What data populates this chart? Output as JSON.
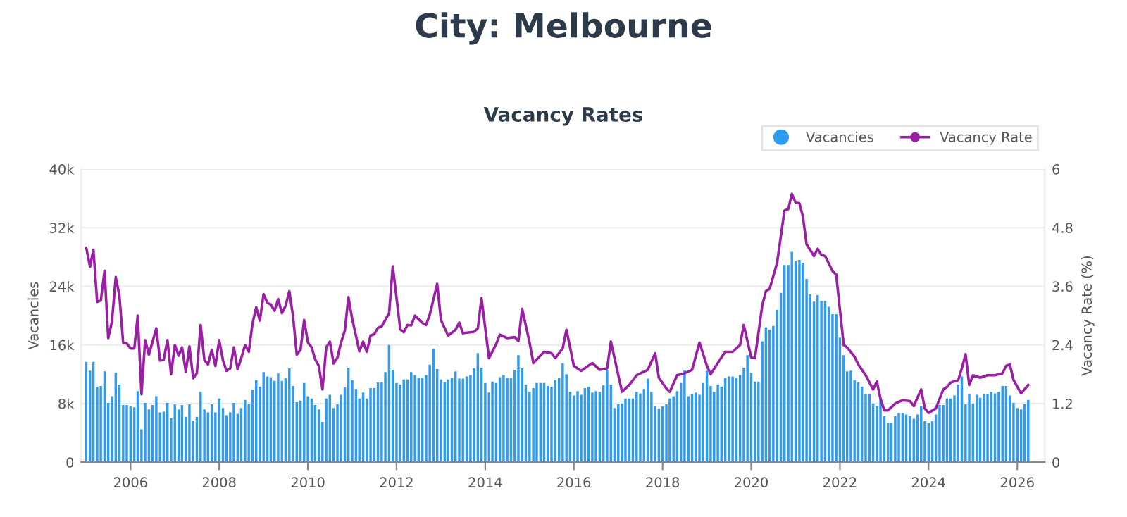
{
  "chart_data": {
    "type": "bar",
    "title": "City: Melbourne",
    "subtitle": "Vacancy Rates",
    "ylabel": "Vacancies",
    "y2label": "Vacancy Rate (%)",
    "x": [
      "2005-01",
      "2005-02",
      "2005-03",
      "2005-04",
      "2005-05",
      "2005-06",
      "2005-07",
      "2005-08",
      "2005-09",
      "2005-10",
      "2005-11",
      "2005-12",
      "2006-01",
      "2006-02",
      "2006-03",
      "2006-04",
      "2006-05",
      "2006-06",
      "2006-07",
      "2006-08",
      "2006-09",
      "2006-10",
      "2006-11",
      "2006-12",
      "2007-01",
      "2007-02",
      "2007-03",
      "2007-04",
      "2007-05",
      "2007-06",
      "2007-07",
      "2007-08",
      "2007-09",
      "2007-10",
      "2007-11",
      "2007-12",
      "2008-01",
      "2008-02",
      "2008-03",
      "2008-04",
      "2008-05",
      "2008-06",
      "2008-07",
      "2008-08",
      "2008-09",
      "2008-10",
      "2008-11",
      "2008-12",
      "2009-01",
      "2009-02",
      "2009-03",
      "2009-04",
      "2009-05",
      "2009-06",
      "2009-07",
      "2009-08",
      "2009-09",
      "2009-10",
      "2009-11",
      "2009-12",
      "2010-01",
      "2010-02",
      "2010-03",
      "2010-04",
      "2010-05",
      "2010-06",
      "2010-07",
      "2010-08",
      "2010-09",
      "2010-10",
      "2010-11",
      "2010-12",
      "2011-01",
      "2011-02",
      "2011-03",
      "2011-04",
      "2011-05",
      "2011-06",
      "2011-07",
      "2011-08",
      "2011-09",
      "2011-10",
      "2011-11",
      "2011-12",
      "2012-01",
      "2012-02",
      "2012-03",
      "2012-04",
      "2012-05",
      "2012-06",
      "2012-07",
      "2012-08",
      "2012-09",
      "2012-10",
      "2012-11",
      "2012-12",
      "2013-01",
      "2013-02",
      "2013-03",
      "2013-04",
      "2013-05",
      "2013-06",
      "2013-07",
      "2013-08",
      "2013-09",
      "2013-10",
      "2013-11",
      "2013-12",
      "2014-01",
      "2014-02",
      "2014-03",
      "2014-04",
      "2014-05",
      "2014-06",
      "2014-07",
      "2014-08",
      "2014-09",
      "2014-10",
      "2014-11",
      "2014-12",
      "2015-01",
      "2015-02",
      "2015-03",
      "2015-04",
      "2015-05",
      "2015-06",
      "2015-07",
      "2015-08",
      "2015-09",
      "2015-10",
      "2015-11",
      "2015-12",
      "2016-01",
      "2016-02",
      "2016-03",
      "2016-04",
      "2016-05",
      "2016-06",
      "2016-07",
      "2016-08",
      "2016-09",
      "2016-10",
      "2016-11",
      "2016-12",
      "2017-01",
      "2017-02",
      "2017-03",
      "2017-04",
      "2017-05",
      "2017-06",
      "2017-07",
      "2017-08",
      "2017-09",
      "2017-10",
      "2017-11",
      "2017-12",
      "2018-01",
      "2018-02",
      "2018-03",
      "2018-04",
      "2018-05",
      "2018-06",
      "2018-07",
      "2018-08",
      "2018-09",
      "2018-10",
      "2018-11",
      "2018-12",
      "2019-01",
      "2019-02",
      "2019-03",
      "2019-04",
      "2019-05",
      "2019-06",
      "2019-07",
      "2019-08",
      "2019-09",
      "2019-10",
      "2019-11",
      "2019-12",
      "2020-01",
      "2020-02",
      "2020-03",
      "2020-04",
      "2020-05",
      "2020-06",
      "2020-07",
      "2020-08",
      "2020-09",
      "2020-10",
      "2020-11",
      "2020-12",
      "2021-01",
      "2021-02",
      "2021-03",
      "2021-04",
      "2021-05",
      "2021-06",
      "2021-07",
      "2021-08",
      "2021-09",
      "2021-10",
      "2021-11",
      "2021-12",
      "2022-01",
      "2022-02",
      "2022-03",
      "2022-04",
      "2022-05",
      "2022-06",
      "2022-07",
      "2022-08",
      "2022-09",
      "2022-10",
      "2022-11",
      "2022-12",
      "2023-01",
      "2023-02",
      "2023-03",
      "2023-04",
      "2023-05",
      "2023-06",
      "2023-07",
      "2023-08",
      "2023-09",
      "2023-10",
      "2023-11",
      "2023-12",
      "2024-01",
      "2024-02",
      "2024-03",
      "2024-04",
      "2024-05",
      "2024-06",
      "2024-07",
      "2024-08",
      "2024-09",
      "2024-10",
      "2024-11",
      "2024-12",
      "2025-01",
      "2025-02",
      "2025-03",
      "2025-04",
      "2025-05",
      "2025-06",
      "2025-07",
      "2025-08",
      "2025-09",
      "2025-10",
      "2025-11",
      "2025-12",
      "2026-01",
      "2026-02",
      "2026-03",
      "2026-04"
    ],
    "series": [
      {
        "name": "Vacancies",
        "color": "#2f9bf0",
        "values": [
          13700,
          12500,
          13700,
          10300,
          10400,
          12400,
          8100,
          9000,
          12200,
          10600,
          7800,
          7800,
          7600,
          7500,
          9700,
          4500,
          8100,
          7200,
          7800,
          9000,
          6800,
          6900,
          8100,
          6000,
          7900,
          7200,
          7800,
          6200,
          7900,
          5700,
          6200,
          9600,
          7200,
          6800,
          7900,
          6800,
          8700,
          7400,
          6400,
          6800,
          8100,
          6600,
          7400,
          8500,
          7900,
          9900,
          11200,
          10300,
          12300,
          11700,
          11600,
          11100,
          12100,
          11100,
          11500,
          12800,
          10400,
          8200,
          8400,
          10800,
          9000,
          8700,
          7800,
          7200,
          5500,
          8700,
          9200,
          7400,
          7900,
          9200,
          10200,
          12900,
          11200,
          10000,
          8700,
          9500,
          8700,
          10100,
          10100,
          10900,
          10900,
          12300,
          16000,
          12600,
          10800,
          10600,
          11300,
          11300,
          12300,
          11900,
          11500,
          11500,
          11900,
          13300,
          15500,
          12700,
          11300,
          10900,
          11300,
          11500,
          12400,
          11400,
          11400,
          11700,
          11900,
          12800,
          14900,
          12900,
          10800,
          9500,
          11000,
          10800,
          11600,
          11900,
          11500,
          11500,
          12600,
          14600,
          12800,
          10600,
          9600,
          10100,
          10800,
          10800,
          10800,
          10400,
          10300,
          11200,
          11500,
          13500,
          12000,
          9600,
          9100,
          9700,
          9200,
          10100,
          10300,
          9500,
          9700,
          9600,
          10500,
          12600,
          10600,
          7400,
          7900,
          8000,
          8700,
          8700,
          8700,
          9600,
          9400,
          10000,
          11400,
          9600,
          7700,
          7300,
          7600,
          7900,
          8700,
          9000,
          9700,
          10800,
          12600,
          9000,
          9300,
          9500,
          9200,
          10800,
          12500,
          10400,
          9600,
          10600,
          10300,
          11500,
          11700,
          11700,
          11500,
          11900,
          12900,
          14600,
          12200,
          11000,
          11000,
          16500,
          18400,
          18100,
          18600,
          20800,
          23100,
          26900,
          26900,
          28700,
          27400,
          27600,
          27200,
          25000,
          22900,
          21900,
          22800,
          22000,
          22000,
          21200,
          20200,
          20200,
          17000,
          14600,
          12400,
          12500,
          11200,
          10900,
          10300,
          9300,
          9300,
          8000,
          7600,
          8800,
          6300,
          5400,
          5400,
          6300,
          6700,
          6700,
          6500,
          6300,
          5900,
          6500,
          7700,
          5600,
          5300,
          5600,
          6500,
          7800,
          7800,
          8700,
          8700,
          9100,
          10600,
          11700,
          7900,
          9300,
          8000,
          9200,
          8800,
          9300,
          9300,
          9600,
          9400,
          9600,
          10400,
          10400,
          9100,
          8100,
          7400,
          7200,
          7900,
          8500
        ]
      },
      {
        "name": "Vacancy Rate",
        "type": "line",
        "axis": "y2",
        "color": "#9b1fa5",
        "marker": "none",
        "x": [
          "2005-01",
          "2005-02",
          "2005-03",
          "2005-04",
          "2005-05",
          "2005-06",
          "2005-07",
          "2005-08",
          "2005-09",
          "2005-10",
          "2005-11",
          "2005-12",
          "2006-01",
          "2006-02",
          "2006-03",
          "2006-04",
          "2006-05",
          "2006-06",
          "2006-08",
          "2006-09",
          "2006-10",
          "2006-11",
          "2006-12",
          "2007-01",
          "2007-02",
          "2007-03",
          "2007-04",
          "2007-05",
          "2007-06",
          "2007-07",
          "2007-08",
          "2007-09",
          "2007-10",
          "2007-11",
          "2007-12",
          "2008-01",
          "2008-02",
          "2008-03",
          "2008-04",
          "2008-05",
          "2008-06",
          "2008-07",
          "2008-08",
          "2008-09",
          "2008-10",
          "2008-11",
          "2008-12",
          "2009-01",
          "2009-02",
          "2009-03",
          "2009-04",
          "2009-05",
          "2009-06",
          "2009-07",
          "2009-08",
          "2009-09",
          "2009-10",
          "2009-11",
          "2009-12",
          "2010-01",
          "2010-02",
          "2010-03",
          "2010-04",
          "2010-05",
          "2010-06",
          "2010-07",
          "2010-08",
          "2010-09",
          "2010-10",
          "2010-11",
          "2010-12",
          "2011-01",
          "2011-02",
          "2011-03",
          "2011-04",
          "2011-05",
          "2011-06",
          "2011-07",
          "2011-08",
          "2011-09",
          "2011-11",
          "2011-12",
          "2012-02",
          "2012-03",
          "2012-04",
          "2012-05",
          "2012-06",
          "2012-08",
          "2012-09",
          "2012-10",
          "2012-12",
          "2013-01",
          "2013-03",
          "2013-05",
          "2013-06",
          "2013-07",
          "2013-10",
          "2013-11",
          "2013-12",
          "2014-02",
          "2014-04",
          "2014-05",
          "2014-07",
          "2014-09",
          "2014-10",
          "2014-11",
          "2015-01",
          "2015-02",
          "2015-05",
          "2015-07",
          "2015-08",
          "2015-10",
          "2015-11",
          "2016-01",
          "2016-03",
          "2016-06",
          "2016-08",
          "2016-10",
          "2016-11",
          "2017-01",
          "2017-02",
          "2017-04",
          "2017-06",
          "2017-09",
          "2017-11",
          "2017-12",
          "2018-02",
          "2018-03",
          "2018-05",
          "2018-07",
          "2018-09",
          "2018-11",
          "2019-01",
          "2019-02",
          "2019-04",
          "2019-06",
          "2019-08",
          "2019-10",
          "2019-11",
          "2020-01",
          "2020-02",
          "2020-04",
          "2020-05",
          "2020-06",
          "2020-08",
          "2020-10",
          "2020-11",
          "2020-12",
          "2021-01",
          "2021-02",
          "2021-03",
          "2021-04",
          "2021-06",
          "2021-07",
          "2021-08",
          "2021-09",
          "2021-11",
          "2021-12",
          "2022-02",
          "2022-03",
          "2022-05",
          "2022-06",
          "2022-08",
          "2022-10",
          "2022-11",
          "2022-12",
          "2023-01",
          "2023-02",
          "2023-04",
          "2023-06",
          "2023-08",
          "2023-09",
          "2023-11",
          "2023-12",
          "2024-01",
          "2024-03",
          "2024-05",
          "2024-06",
          "2024-07",
          "2024-09",
          "2024-10",
          "2024-11",
          "2024-12",
          "2025-01",
          "2025-03",
          "2025-05",
          "2025-07",
          "2025-09",
          "2025-10",
          "2025-11",
          "2025-12",
          "2026-02",
          "2026-04"
        ],
        "values": [
          4.39,
          4.0,
          4.35,
          3.28,
          3.31,
          3.92,
          2.54,
          2.88,
          3.79,
          3.41,
          2.45,
          2.43,
          2.33,
          2.33,
          3.0,
          1.39,
          2.5,
          2.2,
          2.74,
          2.08,
          2.1,
          2.5,
          1.8,
          2.4,
          2.18,
          2.35,
          1.85,
          2.37,
          1.72,
          1.82,
          2.81,
          2.09,
          2.0,
          2.3,
          1.97,
          2.5,
          2.09,
          1.87,
          1.92,
          2.35,
          1.9,
          2.13,
          2.4,
          2.26,
          2.83,
          3.17,
          2.9,
          3.44,
          3.26,
          3.23,
          3.1,
          3.34,
          3.05,
          3.2,
          3.5,
          2.98,
          2.2,
          2.3,
          2.91,
          2.45,
          2.35,
          2.11,
          1.97,
          1.49,
          2.35,
          2.47,
          2.02,
          2.14,
          2.45,
          2.69,
          3.38,
          2.93,
          2.59,
          2.27,
          2.47,
          2.26,
          2.59,
          2.62,
          2.75,
          2.78,
          3.05,
          4.01,
          2.72,
          2.66,
          2.81,
          2.8,
          3.0,
          2.85,
          2.81,
          3.02,
          3.65,
          2.91,
          2.59,
          2.71,
          2.86,
          2.64,
          2.67,
          2.74,
          3.36,
          2.13,
          2.42,
          2.61,
          2.54,
          2.56,
          2.48,
          3.14,
          2.45,
          2.03,
          2.26,
          2.23,
          2.13,
          2.33,
          2.71,
          1.97,
          1.87,
          2.03,
          1.89,
          1.92,
          2.47,
          1.78,
          1.44,
          1.58,
          1.78,
          1.89,
          2.23,
          1.73,
          1.51,
          1.44,
          1.78,
          1.82,
          1.89,
          2.45,
          1.97,
          1.8,
          2.03,
          2.26,
          2.26,
          2.4,
          2.81,
          2.14,
          2.13,
          3.21,
          3.5,
          3.55,
          4.08,
          5.15,
          5.18,
          5.49,
          5.31,
          5.3,
          5.04,
          4.46,
          4.22,
          4.37,
          4.24,
          4.22,
          3.91,
          3.84,
          2.4,
          2.35,
          2.16,
          2.0,
          1.78,
          1.49,
          1.65,
          1.3,
          1.06,
          1.06,
          1.2,
          1.27,
          1.25,
          1.15,
          1.49,
          1.1,
          1.01,
          1.1,
          1.49,
          1.54,
          1.63,
          1.68,
          1.92,
          2.21,
          1.58,
          1.78,
          1.73,
          1.78,
          1.78,
          1.82,
          1.97,
          2.0,
          1.68,
          1.41,
          1.58
        ]
      }
    ],
    "xlim": [
      "2004-11-20",
      "2026-08-15"
    ],
    "xticks": [
      "2006",
      "2008",
      "2010",
      "2012",
      "2014",
      "2016",
      "2018",
      "2020",
      "2022",
      "2024",
      "2026"
    ],
    "ylim": [
      0,
      40000
    ],
    "yticks": [
      0,
      {
        "value": 8000,
        "label": "8k"
      },
      {
        "value": 16000,
        "label": "16k"
      },
      {
        "value": 24000,
        "label": "24k"
      },
      {
        "value": 32000,
        "label": "32k"
      },
      {
        "value": 40000,
        "label": "40k"
      }
    ],
    "y2lim": [
      0,
      6
    ],
    "y2ticks": [
      0,
      1.2,
      2.4,
      3.6,
      4.8,
      6
    ],
    "grid": "y",
    "legend": "top right"
  }
}
